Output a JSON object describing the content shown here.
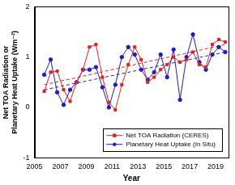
{
  "chart_data": {
    "type": "line",
    "x_label": "Year",
    "y_label": [
      "Net TOA Radiation or",
      "Planetary Heat Uptake (Wm⁻²)"
    ],
    "x": [
      2005.75,
      2006.25,
      2006.75,
      2007.25,
      2007.75,
      2008.25,
      2008.75,
      2009.25,
      2009.75,
      2010.25,
      2010.75,
      2011.25,
      2011.75,
      2012.25,
      2012.75,
      2013.25,
      2013.75,
      2014.25,
      2014.75,
      2015.25,
      2015.75,
      2016.25,
      2016.75,
      2017.25,
      2017.75,
      2018.25,
      2018.75,
      2019.25,
      2019.75
    ],
    "series": [
      {
        "name": "Net TOA Radiation (CERES)",
        "color": "#e8201c",
        "marker": "square",
        "line_style": "solid",
        "values": [
          0.32,
          0.7,
          0.72,
          0.35,
          0.12,
          0.5,
          0.75,
          1.2,
          1.25,
          0.6,
          0.1,
          -0.05,
          0.45,
          0.85,
          1.2,
          0.95,
          0.5,
          0.6,
          0.75,
          0.85,
          1.0,
          0.9,
          0.95,
          1.1,
          0.85,
          0.8,
          1.25,
          1.35,
          1.3
        ]
      },
      {
        "name": "Planetary Heat Uptake (In Situ)",
        "color": "#1c1cc8",
        "marker": "circle",
        "line_style": "solid",
        "values": [
          0.65,
          0.95,
          0.3,
          0.05,
          0.35,
          0.5,
          0.75,
          0.75,
          0.8,
          0.4,
          0.0,
          0.45,
          1.0,
          1.2,
          1.05,
          0.75,
          0.55,
          0.7,
          1.05,
          0.6,
          1.15,
          0.15,
          1.0,
          1.45,
          0.9,
          0.75,
          1.05,
          1.2,
          1.1
        ]
      },
      {
        "color": "#e8201c",
        "marker": "none",
        "line_style": "dashed",
        "x": [
          2005.75,
          2019.75
        ],
        "values": [
          0.45,
          1.25
        ]
      },
      {
        "color": "#1c1cc8",
        "marker": "none",
        "line_style": "dashed",
        "x": [
          2005.75,
          2019.75
        ],
        "values": [
          0.35,
          1.1
        ]
      }
    ],
    "xlim": [
      2005,
      2020
    ],
    "xticks": [
      2005,
      2007,
      2009,
      2011,
      2013,
      2015,
      2017,
      2019
    ],
    "ylim": [
      -1,
      2
    ],
    "yticks": [
      -1,
      0,
      1,
      2
    ],
    "grid": false,
    "legend": "lower right"
  }
}
